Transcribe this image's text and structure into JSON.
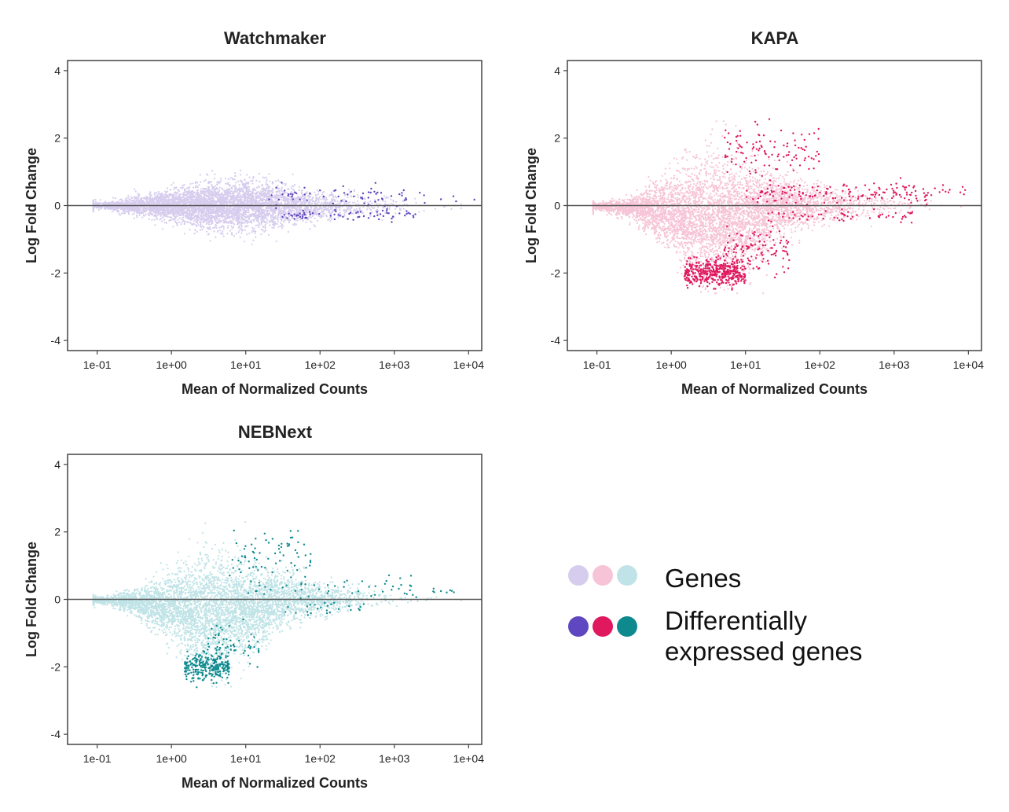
{
  "chart_data": [
    {
      "type": "scatter",
      "title": "Watchmaker",
      "xlabel": "Mean of Normalized Counts",
      "ylabel": "Log Fold Change",
      "x_scale": "log10",
      "xlim": [
        0.04,
        15000
      ],
      "ylim": [
        -4.3,
        4.3
      ],
      "x_ticks": [
        "1e-01",
        "1e+00",
        "1e+01",
        "1e+02",
        "1e+03",
        "1e+04"
      ],
      "y_ticks": [
        "4",
        "2",
        "0",
        "-2",
        "-4"
      ],
      "reference_line_y": 0,
      "series": [
        {
          "name": "Genes",
          "color": "#d6cdee",
          "shape": [
            {
              "x": 0.1,
              "spread": 0.05
            },
            {
              "x": 0.3,
              "spread": 0.12
            },
            {
              "x": 1,
              "spread": 0.22
            },
            {
              "x": 3,
              "spread": 0.32
            },
            {
              "x": 10,
              "spread": 0.35
            },
            {
              "x": 30,
              "spread": 0.3
            },
            {
              "x": 100,
              "spread": 0.22
            },
            {
              "x": 1000,
              "spread": 0.12
            },
            {
              "x": 5000,
              "spread": 0.06
            }
          ],
          "outlier_range": [
            -2.8,
            1.6
          ]
        },
        {
          "name": "Differentially expressed genes",
          "color": "#5e47c0",
          "clusters": [
            {
              "x_range": [
                20,
                3000
              ],
              "y_center": 0.35,
              "y_sd": 0.15,
              "count": 55
            },
            {
              "x_range": [
                30,
                2000
              ],
              "y_center": -0.3,
              "y_sd": 0.08,
              "count": 70
            },
            {
              "x_range": [
                50,
                12000
              ],
              "y_center": 0.2,
              "y_sd": 0.15,
              "count": 15
            }
          ]
        }
      ]
    },
    {
      "type": "scatter",
      "title": "KAPA",
      "xlabel": "Mean of Normalized Counts",
      "ylabel": "Log Fold Change",
      "x_scale": "log10",
      "xlim": [
        0.04,
        15000
      ],
      "ylim": [
        -4.3,
        4.3
      ],
      "x_ticks": [
        "1e-01",
        "1e+00",
        "1e+01",
        "1e+02",
        "1e+03",
        "1e+04"
      ],
      "y_ticks": [
        "4",
        "2",
        "0",
        "-2",
        "-4"
      ],
      "reference_line_y": 0,
      "series": [
        {
          "name": "Genes",
          "color": "#f6c4d6",
          "shape": [
            {
              "x": 0.1,
              "spread": 0.05
            },
            {
              "x": 0.3,
              "spread": 0.15
            },
            {
              "x": 1,
              "spread": 0.5
            },
            {
              "x": 3,
              "spread": 0.9
            },
            {
              "x": 10,
              "spread": 0.7
            },
            {
              "x": 30,
              "spread": 0.45
            },
            {
              "x": 100,
              "spread": 0.25
            },
            {
              "x": 1000,
              "spread": 0.12
            },
            {
              "x": 5000,
              "spread": 0.06
            }
          ],
          "outlier_range": [
            -2.6,
            2.5
          ]
        },
        {
          "name": "Differentially expressed genes",
          "color": "#e0185e",
          "clusters": [
            {
              "x_range": [
                1.5,
                10
              ],
              "y_center": -2.0,
              "y_sd": 0.2,
              "count": 420
            },
            {
              "x_range": [
                5,
                40
              ],
              "y_center": -1.4,
              "y_sd": 0.35,
              "count": 120
            },
            {
              "x_range": [
                5,
                100
              ],
              "y_center": 1.6,
              "y_sd": 0.35,
              "count": 110
            },
            {
              "x_range": [
                10,
                3000
              ],
              "y_center": 0.35,
              "y_sd": 0.15,
              "count": 150
            },
            {
              "x_range": [
                20,
                2000
              ],
              "y_center": -0.3,
              "y_sd": 0.1,
              "count": 60
            },
            {
              "x_range": [
                3000,
                10000
              ],
              "y_center": 0.45,
              "y_sd": 0.08,
              "count": 12
            }
          ]
        }
      ]
    },
    {
      "type": "scatter",
      "title": "NEBNext",
      "xlabel": "Mean of Normalized Counts",
      "ylabel": "Log Fold Change",
      "x_scale": "log10",
      "xlim": [
        0.04,
        15000
      ],
      "ylim": [
        -4.3,
        4.3
      ],
      "x_ticks": [
        "1e-01",
        "1e+00",
        "1e+01",
        "1e+02",
        "1e+03",
        "1e+04"
      ],
      "y_ticks": [
        "4",
        "2",
        "0",
        "-2",
        "-4"
      ],
      "reference_line_y": 0,
      "series": [
        {
          "name": "Genes",
          "color": "#bfe3e6",
          "shape": [
            {
              "x": 0.1,
              "spread": 0.05
            },
            {
              "x": 0.3,
              "spread": 0.15
            },
            {
              "x": 1,
              "spread": 0.45
            },
            {
              "x": 3,
              "spread": 0.8
            },
            {
              "x": 10,
              "spread": 0.6
            },
            {
              "x": 30,
              "spread": 0.4
            },
            {
              "x": 100,
              "spread": 0.22
            },
            {
              "x": 1000,
              "spread": 0.12
            },
            {
              "x": 5000,
              "spread": 0.06
            }
          ],
          "outlier_range": [
            -2.6,
            2.3
          ]
        },
        {
          "name": "Differentially expressed genes",
          "color": "#0e8a8f",
          "clusters": [
            {
              "x_range": [
                1.5,
                6
              ],
              "y_center": -2.0,
              "y_sd": 0.2,
              "count": 260
            },
            {
              "x_range": [
                3,
                15
              ],
              "y_center": -1.4,
              "y_sd": 0.3,
              "count": 60
            },
            {
              "x_range": [
                6,
                80
              ],
              "y_center": 1.3,
              "y_sd": 0.4,
              "count": 70
            },
            {
              "x_range": [
                10,
                2000
              ],
              "y_center": 0.35,
              "y_sd": 0.15,
              "count": 50
            },
            {
              "x_range": [
                30,
                500
              ],
              "y_center": -0.3,
              "y_sd": 0.1,
              "count": 25
            },
            {
              "x_range": [
                3000,
                12000
              ],
              "y_center": 0.25,
              "y_sd": 0.05,
              "count": 8
            }
          ]
        }
      ]
    }
  ],
  "legend": {
    "genes_label": "Genes",
    "de_label_line1": "Differentially",
    "de_label_line2": "expressed genes",
    "genes_colors": [
      "#d6cdee",
      "#f6c4d6",
      "#bfe3e6"
    ],
    "de_colors": [
      "#5e47c0",
      "#e0185e",
      "#0e8a8f"
    ]
  }
}
